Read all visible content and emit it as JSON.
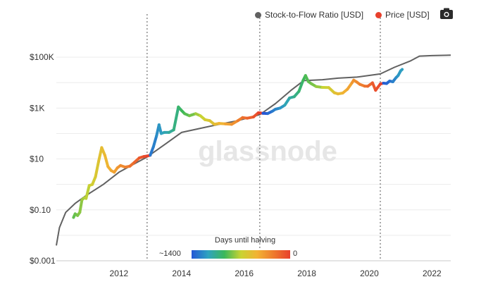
{
  "legend": {
    "s2f_label": "Stock-to-Flow Ratio [USD]",
    "s2f_color": "#616161",
    "price_label": "Price [USD]",
    "price_color": "#e8402c"
  },
  "toolbar": {
    "camera_icon": "camera-icon"
  },
  "watermark": "glassnode",
  "colorbar": {
    "title": "Days until halving",
    "min_label": "~1400",
    "max_label": "0",
    "colors": [
      "#2457d6",
      "#2fa3c0",
      "#3cb85a",
      "#c9d333",
      "#f2b233",
      "#ee7a2e",
      "#e8402c"
    ]
  },
  "chart_data": {
    "type": "line",
    "title": "",
    "xlabel": "",
    "ylabel": "",
    "y_scale": "log",
    "xlim": [
      2010.0,
      2022.6
    ],
    "ylim": [
      0.001,
      1000000
    ],
    "x_ticks": [
      2012,
      2014,
      2016,
      2018,
      2020,
      2022
    ],
    "x_tick_labels": [
      "2012",
      "2014",
      "2016",
      "2018",
      "2020",
      "2022"
    ],
    "y_ticks": [
      0.001,
      0.1,
      10,
      1000,
      100000
    ],
    "y_tick_labels": [
      "$0.001",
      "$0.10",
      "$10",
      "$1K",
      "$100K"
    ],
    "halving_lines": [
      2012.9,
      2016.5,
      2020.35
    ],
    "series": [
      {
        "name": "Stock-to-Flow Ratio [USD]",
        "color": "#616161",
        "points": [
          [
            2010.0,
            0.004
          ],
          [
            2010.1,
            0.02
          ],
          [
            2010.3,
            0.08
          ],
          [
            2010.6,
            0.18
          ],
          [
            2011.0,
            0.4
          ],
          [
            2011.5,
            1.0
          ],
          [
            2012.0,
            3.0
          ],
          [
            2012.5,
            6.5
          ],
          [
            2012.9,
            12
          ],
          [
            2013.5,
            40
          ],
          [
            2014.0,
            110
          ],
          [
            2014.6,
            160
          ],
          [
            2015.2,
            230
          ],
          [
            2015.8,
            320
          ],
          [
            2016.5,
            550
          ],
          [
            2017.0,
            1500
          ],
          [
            2017.5,
            5000
          ],
          [
            2017.9,
            12000
          ],
          [
            2018.5,
            13000
          ],
          [
            2019.0,
            15000
          ],
          [
            2019.6,
            16500
          ],
          [
            2020.35,
            22000
          ],
          [
            2020.8,
            40000
          ],
          [
            2021.3,
            70000
          ],
          [
            2021.6,
            110000
          ],
          [
            2022.0,
            115000
          ],
          [
            2022.6,
            120000
          ]
        ]
      },
      {
        "name": "Price [USD]",
        "color_by": "days_until_halving",
        "points": [
          [
            2010.55,
            0.05,
            870
          ],
          [
            2010.6,
            0.07,
            850
          ],
          [
            2010.68,
            0.06,
            820
          ],
          [
            2010.75,
            0.08,
            800
          ],
          [
            2010.82,
            0.25,
            770
          ],
          [
            2010.9,
            0.3,
            740
          ],
          [
            2010.95,
            0.28,
            720
          ],
          [
            2011.05,
            0.9,
            680
          ],
          [
            2011.15,
            1.0,
            650
          ],
          [
            2011.25,
            2.0,
            610
          ],
          [
            2011.35,
            8,
            570
          ],
          [
            2011.45,
            28,
            535
          ],
          [
            2011.55,
            14,
            500
          ],
          [
            2011.65,
            5,
            460
          ],
          [
            2011.75,
            3.5,
            420
          ],
          [
            2011.85,
            3,
            390
          ],
          [
            2011.95,
            4.5,
            350
          ],
          [
            2012.05,
            5.5,
            310
          ],
          [
            2012.2,
            4.8,
            260
          ],
          [
            2012.35,
            5.2,
            200
          ],
          [
            2012.5,
            7.5,
            150
          ],
          [
            2012.65,
            11,
            90
          ],
          [
            2012.8,
            12.5,
            40
          ],
          [
            2012.9,
            13,
            5
          ],
          [
            2013.0,
            14,
            1300
          ],
          [
            2013.1,
            30,
            1270
          ],
          [
            2013.2,
            80,
            1230
          ],
          [
            2013.28,
            220,
            1200
          ],
          [
            2013.35,
            100,
            1170
          ],
          [
            2013.45,
            110,
            1130
          ],
          [
            2013.6,
            110,
            1080
          ],
          [
            2013.75,
            140,
            1020
          ],
          [
            2013.9,
            1100,
            970
          ],
          [
            2014.0,
            800,
            930
          ],
          [
            2014.1,
            600,
            890
          ],
          [
            2014.25,
            500,
            840
          ],
          [
            2014.45,
            600,
            760
          ],
          [
            2014.6,
            500,
            700
          ],
          [
            2014.75,
            350,
            640
          ],
          [
            2014.9,
            320,
            590
          ],
          [
            2015.05,
            230,
            530
          ],
          [
            2015.2,
            250,
            480
          ],
          [
            2015.4,
            240,
            400
          ],
          [
            2015.6,
            230,
            330
          ],
          [
            2015.8,
            320,
            250
          ],
          [
            2015.95,
            420,
            190
          ],
          [
            2016.1,
            400,
            140
          ],
          [
            2016.3,
            450,
            75
          ],
          [
            2016.45,
            650,
            20
          ],
          [
            2016.5,
            650,
            5
          ],
          [
            2016.6,
            620,
            1400
          ],
          [
            2016.75,
            610,
            1340
          ],
          [
            2016.9,
            750,
            1290
          ],
          [
            2017.0,
            900,
            1250
          ],
          [
            2017.15,
            1000,
            1200
          ],
          [
            2017.3,
            1300,
            1140
          ],
          [
            2017.45,
            2500,
            1090
          ],
          [
            2017.6,
            2800,
            1030
          ],
          [
            2017.75,
            4500,
            980
          ],
          [
            2017.88,
            12000,
            930
          ],
          [
            2017.96,
            19000,
            900
          ],
          [
            2018.05,
            11000,
            870
          ],
          [
            2018.15,
            9000,
            830
          ],
          [
            2018.3,
            7000,
            780
          ],
          [
            2018.5,
            6500,
            700
          ],
          [
            2018.7,
            6400,
            630
          ],
          [
            2018.88,
            4000,
            560
          ],
          [
            2019.0,
            3600,
            520
          ],
          [
            2019.15,
            3900,
            470
          ],
          [
            2019.3,
            5500,
            410
          ],
          [
            2019.45,
            10000,
            350
          ],
          [
            2019.5,
            12500,
            330
          ],
          [
            2019.6,
            10500,
            290
          ],
          [
            2019.7,
            8500,
            250
          ],
          [
            2019.85,
            7300,
            200
          ],
          [
            2019.95,
            7200,
            160
          ],
          [
            2020.1,
            9800,
            100
          ],
          [
            2020.2,
            5000,
            60
          ],
          [
            2020.35,
            8800,
            5
          ],
          [
            2020.45,
            9500,
            1380
          ],
          [
            2020.55,
            9200,
            1350
          ],
          [
            2020.65,
            11500,
            1310
          ],
          [
            2020.75,
            10800,
            1270
          ],
          [
            2020.85,
            15500,
            1230
          ],
          [
            2020.92,
            19000,
            1200
          ],
          [
            2021.0,
            29000,
            1180
          ],
          [
            2021.05,
            33000,
            1160
          ]
        ]
      }
    ]
  }
}
